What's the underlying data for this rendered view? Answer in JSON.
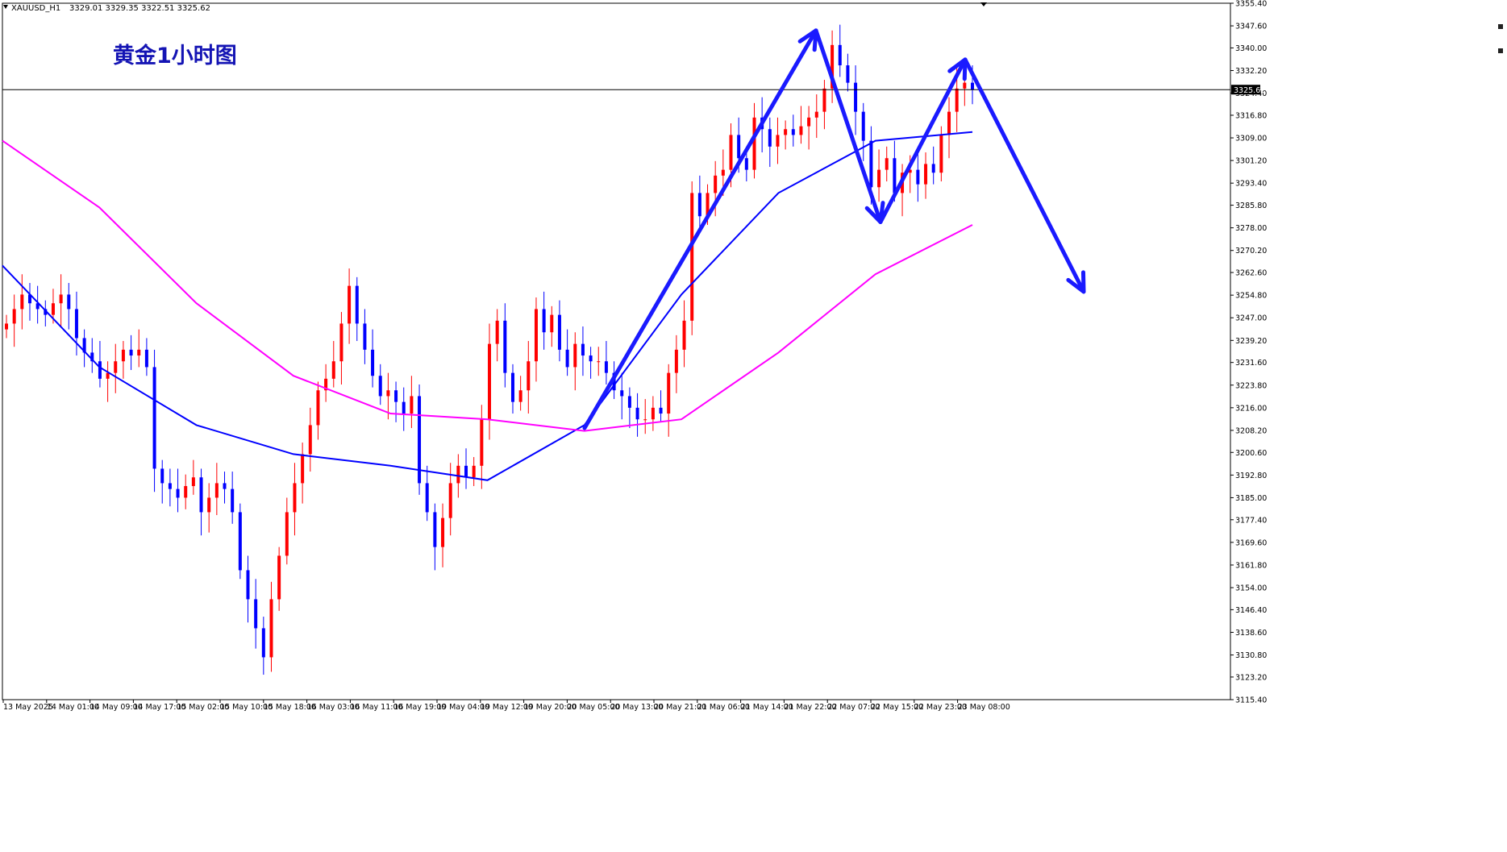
{
  "header": {
    "symbol": "XAUUSD_H1",
    "ohlc": "3329.01 3329.35 3322.51 3325.62"
  },
  "annotation_title": "黄金1小时图",
  "current_price_label": "3325.62",
  "colors": {
    "bull": "#ff0000",
    "bear": "#0000ff",
    "ma_fast": "#0000ff",
    "ma_slow": "#ff00ff",
    "arrow": "#1a1aff",
    "title": "#1414b4"
  },
  "chart_data": {
    "type": "candlestick",
    "title": "黄金1小时图",
    "y_axis": {
      "min": 3115.4,
      "max": 3355.4,
      "ticks": [
        "3355.40",
        "3347.60",
        "3340.00",
        "3332.20",
        "3324.40",
        "3316.80",
        "3309.00",
        "3301.20",
        "3293.40",
        "3285.80",
        "3278.00",
        "3270.20",
        "3262.60",
        "3254.80",
        "3247.00",
        "3239.20",
        "3231.60",
        "3223.80",
        "3216.00",
        "3208.20",
        "3200.60",
        "3192.80",
        "3185.00",
        "3177.40",
        "3169.60",
        "3161.80",
        "3154.00",
        "3146.40",
        "3138.60",
        "3130.80",
        "3123.20",
        "3115.40"
      ]
    },
    "x_axis": {
      "labels": [
        "13 May 2025",
        "14 May 01:00",
        "14 May 09:00",
        "14 May 17:00",
        "15 May 02:00",
        "15 May 10:00",
        "15 May 18:00",
        "16 May 03:00",
        "16 May 11:00",
        "16 May 19:00",
        "19 May 04:00",
        "19 May 12:00",
        "19 May 20:00",
        "20 May 05:00",
        "20 May 13:00",
        "20 May 21:00",
        "21 May 06:00",
        "21 May 14:00",
        "21 May 22:00",
        "22 May 07:00",
        "22 May 15:00",
        "22 May 23:00",
        "23 May 08:00"
      ]
    },
    "current_price": 3325.62,
    "candles_close": [
      3245,
      3250,
      3255,
      3252,
      3250,
      3248,
      3252,
      3255,
      3250,
      3240,
      3235,
      3232,
      3226,
      3228,
      3232,
      3236,
      3234,
      3236,
      3230,
      3195,
      3190,
      3188,
      3185,
      3189,
      3192,
      3180,
      3185,
      3190,
      3188,
      3180,
      3160,
      3150,
      3140,
      3130,
      3150,
      3165,
      3180,
      3190,
      3200,
      3210,
      3222,
      3226,
      3232,
      3245,
      3258,
      3245,
      3236,
      3227,
      3220,
      3222,
      3218,
      3214,
      3220,
      3190,
      3180,
      3168,
      3178,
      3190,
      3196,
      3192,
      3196,
      3212,
      3238,
      3246,
      3228,
      3218,
      3222,
      3232,
      3250,
      3242,
      3248,
      3236,
      3230,
      3238,
      3234,
      3232,
      3232,
      3228,
      3222,
      3220,
      3216,
      3212,
      3212,
      3216,
      3214,
      3228,
      3236,
      3246,
      3290,
      3282,
      3290,
      3296,
      3298,
      3310,
      3302,
      3298,
      3316,
      3312,
      3306,
      3310,
      3312,
      3310,
      3313,
      3316,
      3318,
      3326,
      3341,
      3334,
      3328,
      3318,
      3308,
      3292,
      3298,
      3302,
      3290,
      3297,
      3298,
      3293,
      3300,
      3297,
      3310,
      3318,
      3326,
      3328,
      3325.62
    ],
    "moving_averages": [
      {
        "name": "fast",
        "color": "#0000ff",
        "values": [
          3265,
          3230,
          3210,
          3200,
          3196,
          3191,
          3210,
          3255,
          3290,
          3308,
          3311
        ]
      },
      {
        "name": "slow",
        "color": "#ff00ff",
        "values": [
          3308,
          3285,
          3252,
          3227,
          3214,
          3212,
          3208,
          3212,
          3235,
          3262,
          3279
        ]
      }
    ],
    "annotations": [
      {
        "type": "arrow-up",
        "from_price": 3209,
        "to_price": 3346
      },
      {
        "type": "arrow-down",
        "from_price": 3346,
        "to_price": 3280
      },
      {
        "type": "arrow-up",
        "from_price": 3280,
        "to_price": 3336
      },
      {
        "type": "arrow-down",
        "from_price": 3336,
        "to_price": 3256
      }
    ]
  }
}
